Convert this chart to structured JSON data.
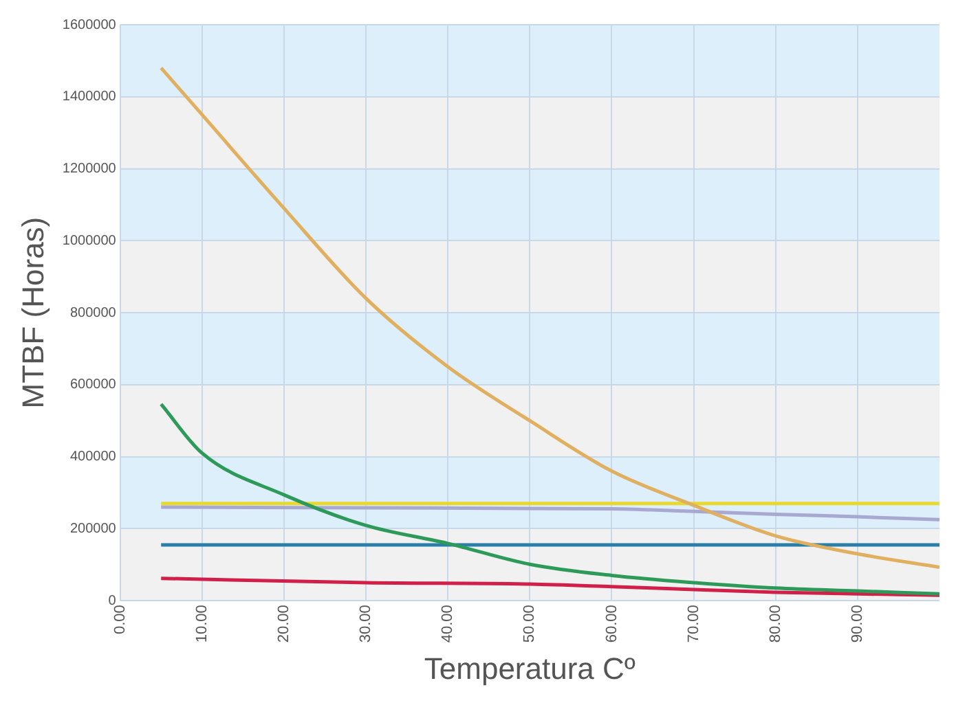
{
  "chart_data": {
    "type": "line",
    "xlabel": "Temperatura Cº",
    "ylabel": "MTBF (Horas)",
    "xlim": [
      0,
      100
    ],
    "xticks": [
      {
        "value": 0,
        "label": "0.00"
      },
      {
        "value": 10,
        "label": "10.00"
      },
      {
        "value": 20,
        "label": "20.00"
      },
      {
        "value": 30,
        "label": "30.00"
      },
      {
        "value": 40,
        "label": "40.00"
      },
      {
        "value": 50,
        "label": "50.00"
      },
      {
        "value": 60,
        "label": "60.00"
      },
      {
        "value": 70,
        "label": "70.00"
      },
      {
        "value": 80,
        "label": "80.00"
      },
      {
        "value": 90,
        "label": "90.00"
      }
    ],
    "ylim": [
      0,
      1600000
    ],
    "yticks": [
      0,
      200000,
      400000,
      600000,
      800000,
      1000000,
      1200000,
      1400000,
      1600000
    ],
    "grid": true,
    "legend": false,
    "marker": "none",
    "line_style": "solid",
    "series": [
      {
        "color": "#e0b060",
        "x": [
          5,
          10,
          20,
          30,
          40,
          50,
          60,
          70,
          80,
          90,
          100
        ],
        "values": [
          1480000,
          1350000,
          1090000,
          840000,
          650000,
          500000,
          360000,
          265000,
          180000,
          130000,
          93000
        ]
      },
      {
        "color": "#2e9a5a",
        "x": [
          5,
          10,
          20,
          30,
          40,
          50,
          60,
          70,
          80,
          90,
          100
        ],
        "values": [
          546000,
          410000,
          294000,
          209000,
          159000,
          101000,
          70000,
          50000,
          35000,
          27000,
          19000
        ]
      },
      {
        "color": "#e8d830",
        "x": [
          5,
          100
        ],
        "values": [
          270000,
          270000
        ]
      },
      {
        "color": "#a8a8d0",
        "x": [
          5,
          30,
          60,
          70,
          80,
          90,
          100
        ],
        "values": [
          260000,
          258000,
          255000,
          248000,
          240000,
          233000,
          225000
        ]
      },
      {
        "color": "#2a7fa8",
        "x": [
          5,
          100
        ],
        "values": [
          155000,
          155000
        ]
      },
      {
        "color": "#d0204a",
        "x": [
          5,
          30,
          50,
          60,
          70,
          80,
          90,
          100
        ],
        "values": [
          62000,
          50000,
          46000,
          39000,
          31000,
          23000,
          19000,
          15000
        ]
      }
    ]
  }
}
